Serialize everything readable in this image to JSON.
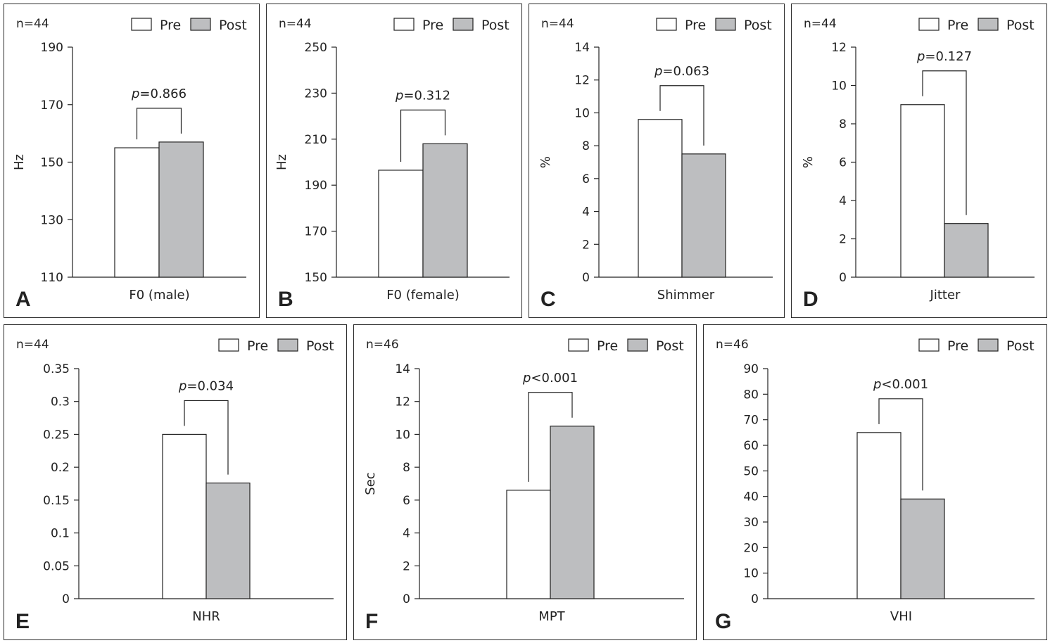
{
  "legend": {
    "pre_label": "Pre",
    "post_label": "Post",
    "pre_color": "#ffffff",
    "post_color": "#bdbec0"
  },
  "chart_data": [
    {
      "type": "bar",
      "panel": "A",
      "n_label": "n=44",
      "xlabel": "F0 (male)",
      "ylabel": "Hz",
      "ylim": [
        110,
        190
      ],
      "yticks": [
        110,
        130,
        150,
        170,
        190
      ],
      "series": [
        {
          "name": "Pre",
          "values": [
            155
          ]
        },
        {
          "name": "Post",
          "values": [
            157
          ]
        }
      ],
      "annotation": {
        "p_symbol": "p",
        "p_rest": "=0.866"
      }
    },
    {
      "type": "bar",
      "panel": "B",
      "n_label": "n=44",
      "xlabel": "F0 (female)",
      "ylabel": "Hz",
      "ylim": [
        150,
        250
      ],
      "yticks": [
        150,
        170,
        190,
        210,
        230,
        250
      ],
      "series": [
        {
          "name": "Pre",
          "values": [
            196.5
          ]
        },
        {
          "name": "Post",
          "values": [
            208
          ]
        }
      ],
      "annotation": {
        "p_symbol": "p",
        "p_rest": "=0.312"
      }
    },
    {
      "type": "bar",
      "panel": "C",
      "n_label": "n=44",
      "xlabel": "Shimmer",
      "ylabel": "%",
      "ylim": [
        0,
        14
      ],
      "yticks": [
        0,
        2,
        4,
        6,
        8,
        10,
        12,
        14
      ],
      "series": [
        {
          "name": "Pre",
          "values": [
            9.6
          ]
        },
        {
          "name": "Post",
          "values": [
            7.5
          ]
        }
      ],
      "annotation": {
        "p_symbol": "p",
        "p_rest": "=0.063"
      }
    },
    {
      "type": "bar",
      "panel": "D",
      "n_label": "n=44",
      "xlabel": "Jitter",
      "ylabel": "%",
      "ylim": [
        0,
        12
      ],
      "yticks": [
        0,
        2,
        4,
        6,
        8,
        10,
        12
      ],
      "series": [
        {
          "name": "Pre",
          "values": [
            9
          ]
        },
        {
          "name": "Post",
          "values": [
            2.8
          ]
        }
      ],
      "annotation": {
        "p_symbol": "p",
        "p_rest": "=0.127"
      }
    },
    {
      "type": "bar",
      "panel": "E",
      "n_label": "n=44",
      "xlabel": "NHR",
      "ylabel": "",
      "ylim": [
        0,
        0.35
      ],
      "yticks": [
        0,
        0.05,
        0.1,
        0.15,
        0.2,
        0.25,
        0.3,
        0.35
      ],
      "series": [
        {
          "name": "Pre",
          "values": [
            0.25
          ]
        },
        {
          "name": "Post",
          "values": [
            0.176
          ]
        }
      ],
      "annotation": {
        "p_symbol": "p",
        "p_rest": "=0.034"
      }
    },
    {
      "type": "bar",
      "panel": "F",
      "n_label": "n=46",
      "xlabel": "MPT",
      "ylabel": "Sec",
      "ylim": [
        0,
        14
      ],
      "yticks": [
        0,
        2,
        4,
        6,
        8,
        10,
        12,
        14
      ],
      "series": [
        {
          "name": "Pre",
          "values": [
            6.6
          ]
        },
        {
          "name": "Post",
          "values": [
            10.5
          ]
        }
      ],
      "annotation": {
        "p_symbol": "p",
        "p_rest": "<0.001"
      }
    },
    {
      "type": "bar",
      "panel": "G",
      "n_label": "n=46",
      "xlabel": "VHI",
      "ylabel": "",
      "ylim": [
        0,
        90
      ],
      "yticks": [
        0,
        10,
        20,
        30,
        40,
        50,
        60,
        70,
        80,
        90
      ],
      "series": [
        {
          "name": "Pre",
          "values": [
            65
          ]
        },
        {
          "name": "Post",
          "values": [
            39
          ]
        }
      ],
      "annotation": {
        "p_symbol": "p",
        "p_rest": "<0.001"
      }
    }
  ]
}
